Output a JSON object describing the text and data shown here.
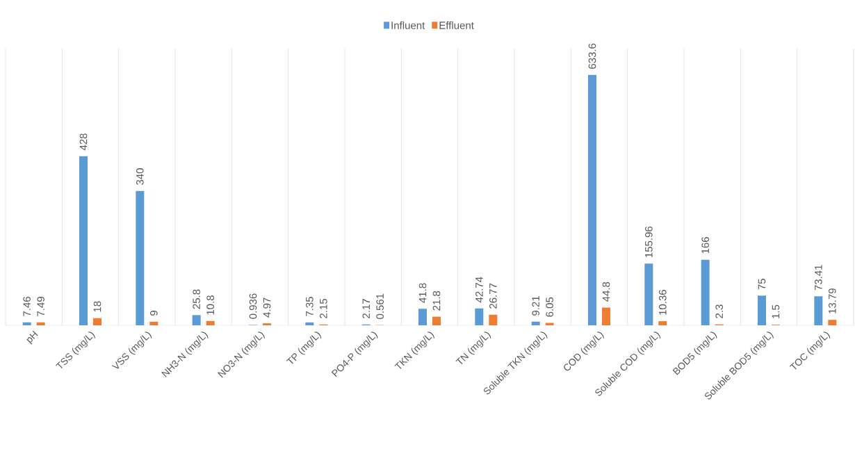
{
  "chart_data": {
    "type": "bar",
    "categories": [
      "pH",
      "TSS (mg/L)",
      "VSS (mg/L)",
      "NH3-N (mg/L)",
      "NO3-N (mg/L)",
      "TP (mg/L)",
      "PO4-P (mg/L)",
      "TKN (mg/L)",
      "TN (mg/L)",
      "Soluble TKN (mg/L)",
      "COD (mg/L)",
      "Soluble COD (mg/L)",
      "BOD5 (mg/L)",
      "Soluble BOD5 (mg/L)",
      "TOC (mg/L)"
    ],
    "series": [
      {
        "name": "Influent",
        "color": "#5b9bd5",
        "values": [
          7.46,
          428,
          340,
          25.8,
          0.936,
          7.35,
          2.17,
          41.8,
          42.74,
          9.21,
          633.6,
          155.96,
          166,
          75,
          73.41
        ]
      },
      {
        "name": "Effluent",
        "color": "#ed7d31",
        "values": [
          7.49,
          18,
          9,
          10.8,
          4.97,
          2.15,
          0.561,
          21.8,
          26.77,
          6.05,
          44.8,
          10.36,
          2.3,
          1.5,
          13.79
        ]
      }
    ],
    "data_labels": true,
    "grid": "x",
    "legend": "top"
  }
}
